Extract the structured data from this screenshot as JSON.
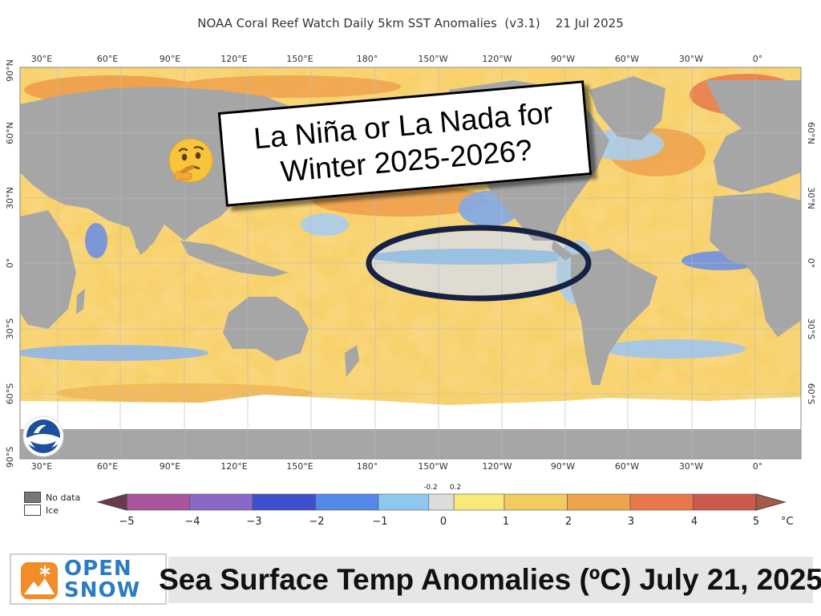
{
  "map": {
    "title": "NOAA Coral Reef Watch Daily 5km SST Anomalies  (v3.1)    21 Jul 2025",
    "top_lon_labels": [
      "30°E",
      "60°E",
      "90°E",
      "120°E",
      "150°E",
      "180°",
      "150°W",
      "120°W",
      "90°W",
      "60°W",
      "30°W",
      "0°"
    ],
    "bottom_lon_labels": [
      "30°E",
      "60°E",
      "90°E",
      "120°E",
      "150°E",
      "180°",
      "150°W",
      "120°W",
      "90°W",
      "60°W",
      "30°W",
      "0°"
    ],
    "left_lat_labels": [
      "90°N",
      "60°N",
      "30°N",
      "0°",
      "30°S",
      "60°S",
      "90°S"
    ],
    "right_lat_labels": [
      "60°N",
      "30°N",
      "0°",
      "30°S",
      "60°S"
    ],
    "colors": {
      "land": "#a6a6a6",
      "ocean_warm": "#f7cf62",
      "ocean_light": "#fae79a",
      "ocean_hot": "#ee8a3c",
      "ocean_cool": "#a6c8ec",
      "ocean_cold": "#4f7fe0",
      "ice": "#ffffff",
      "highlight_ring": "#162244"
    }
  },
  "callout": {
    "line1": "La Niña or La Nada for",
    "line2": "Winter 2025-2026?",
    "emoji_icon": "thinking-face-icon"
  },
  "legend": {
    "no_data": "No data",
    "ice": "Ice",
    "unit": "°C",
    "ticks": [
      "−5",
      "−4",
      "−3",
      "−2",
      "−1",
      "0",
      "1",
      "2",
      "3",
      "4",
      "5"
    ],
    "small_ticks": [
      "-0.2",
      "0.2"
    ],
    "scale_colors": [
      "#a9549c",
      "#8a68c8",
      "#3e4fcf",
      "#5588e8",
      "#8ec8f0",
      "#dcdcdc",
      "#f7e97a",
      "#f2cc60",
      "#eea24c",
      "#e8784a",
      "#cc5a4a",
      "#a85a4a"
    ]
  },
  "footer": {
    "brand_line1": "OPEN",
    "brand_line2": "SNOW",
    "brand_color": "#2a7cc4",
    "brand_icon": "snowflake-mountain-icon",
    "headline": "Sea Surface Temp Anomalies (ºC) July 21, 2025"
  }
}
